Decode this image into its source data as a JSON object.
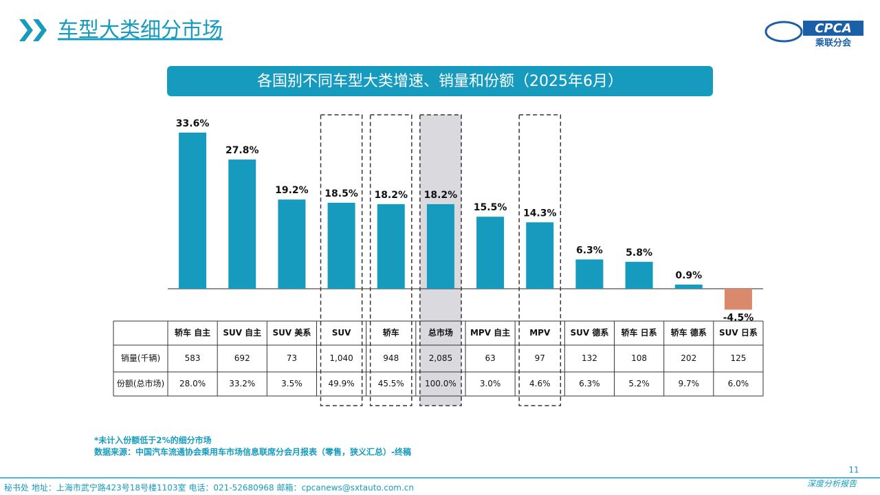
{
  "header": {
    "title": "车型大类细分市场",
    "logo": "CPCA",
    "logo_sub": "乘联分会"
  },
  "chart_data": {
    "type": "bar",
    "title": "各国别不同车型大类增速、销量和份额（2025年6月）",
    "categories": [
      "轿车 自主",
      "SUV 自主",
      "SUV 美系",
      "SUV",
      "轿车",
      "总市场",
      "MPV 自主",
      "MPV",
      "SUV 德系",
      "轿车 日系",
      "轿车 德系",
      "SUV 日系"
    ],
    "values": [
      33.6,
      27.8,
      19.2,
      18.5,
      18.2,
      18.2,
      15.5,
      14.3,
      6.3,
      5.8,
      0.9,
      -4.5
    ],
    "value_labels": [
      "33.6%",
      "27.8%",
      "19.2%",
      "18.5%",
      "18.2%",
      "18.2%",
      "15.5%",
      "14.3%",
      "6.3%",
      "5.8%",
      "0.9%",
      "-4.5%"
    ],
    "color": "#169bbf",
    "negative_color": "#d98a6c"
  },
  "table": {
    "row_labels": [
      "销量(千辆)",
      "份额(总市场)"
    ],
    "rows": [
      [
        "583",
        "692",
        "73",
        "1,040",
        "948",
        "2,085",
        "63",
        "97",
        "132",
        "108",
        "202",
        "125"
      ],
      [
        "28.0%",
        "33.2%",
        "3.5%",
        "49.9%",
        "45.5%",
        "100.0%",
        "3.0%",
        "4.6%",
        "6.3%",
        "5.2%",
        "9.7%",
        "6.0%"
      ]
    ]
  },
  "notes": [
    "*未计入份额低于2%的细分市场",
    "数据来源：中国汽车流通协会乘用车市场信息联席分会月报表（零售，狭义汇总）-终稿"
  ],
  "footer": {
    "address": "秘书处  地址：上海市武宁路423号18号楼1103室  电话：021-52680968  邮箱：cpcanews@sxtauto.com.cn",
    "page": "11",
    "report": "深度分析报告"
  }
}
